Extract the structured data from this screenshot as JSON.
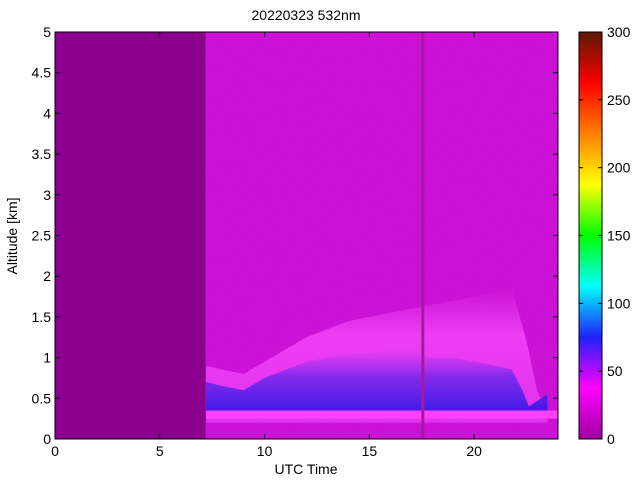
{
  "chart_data": {
    "type": "heatmap",
    "title": "20220323 532nm",
    "xlabel": "UTC Time",
    "ylabel": "Altitude [km]",
    "xlim": [
      0,
      24
    ],
    "ylim": [
      0,
      5
    ],
    "x_ticks": [
      0,
      5,
      10,
      15,
      20
    ],
    "y_ticks": [
      0,
      0.5,
      1,
      1.5,
      2,
      2.5,
      3,
      3.5,
      4,
      4.5,
      5
    ],
    "colorbar": {
      "range": [
        0,
        300
      ],
      "ticks": [
        0,
        50,
        100,
        150,
        200,
        250,
        300
      ],
      "colormap": [
        "#a000a0",
        "#ff00ff",
        "#2020ff",
        "#00ffff",
        "#00ff00",
        "#ffff00",
        "#ff8000",
        "#ff0000",
        "#5a1a00"
      ]
    },
    "no_data_interval_hours": [
      0,
      7.2
    ],
    "no_data_color": "#8c0090",
    "gap_line_hour": 17.55,
    "colors": {
      "background_signal": "#cc14d8",
      "boundary_layer_top": "#f040f6",
      "aerosol_blue": "#3a1ee6",
      "surface_band": "#ff40ff"
    }
  }
}
